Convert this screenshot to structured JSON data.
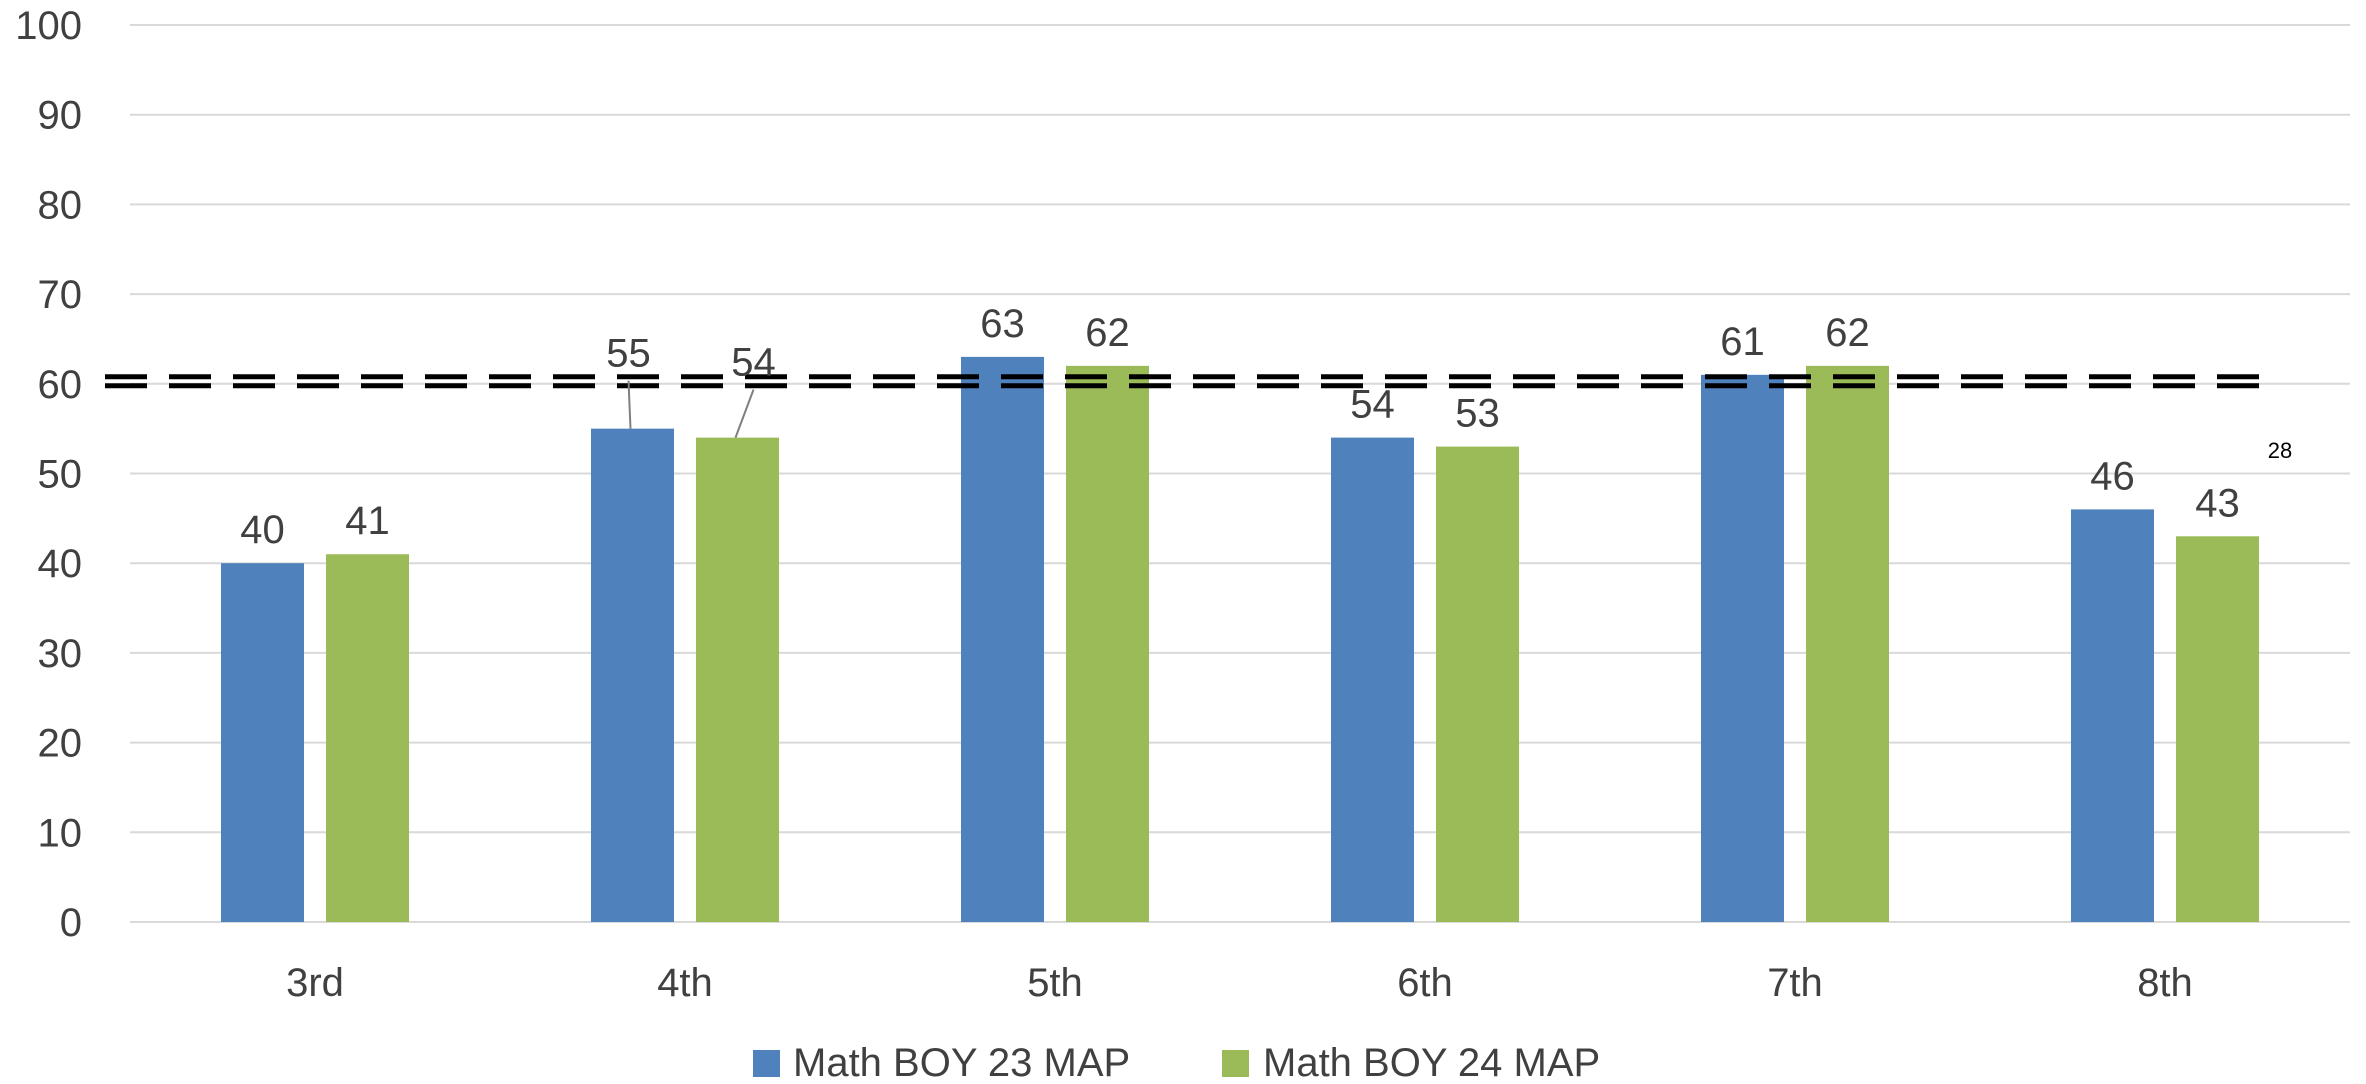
{
  "chart_data": {
    "type": "bar",
    "categories": [
      "3rd",
      "4th",
      "5th",
      "6th",
      "7th",
      "8th"
    ],
    "series": [
      {
        "name": "Math BOY 23 MAP",
        "values": [
          40,
          55,
          63,
          54,
          61,
          46
        ],
        "color": "#4F81BD"
      },
      {
        "name": "Math BOY  24 MAP",
        "values": [
          41,
          54,
          62,
          53,
          62,
          43
        ],
        "color": "#9BBB59"
      }
    ],
    "ylim": [
      0,
      100
    ],
    "yticks": [
      "0",
      "10",
      "20",
      "30",
      "40",
      "50",
      "60",
      "70",
      "80",
      "90",
      "100"
    ],
    "grid": true,
    "legend": "bottom-center",
    "reference_line": {
      "value": 60,
      "style": "double-dashed",
      "color": "#000000"
    },
    "annotation": "28",
    "title": "",
    "xlabel": "",
    "ylabel": ""
  }
}
